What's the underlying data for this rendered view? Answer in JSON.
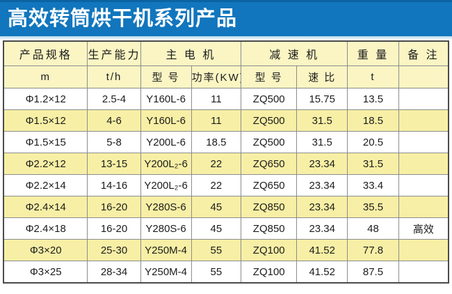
{
  "title": "高效转筒烘干机系列产品",
  "colors": {
    "title_bar_bg": "#1176bd",
    "title_bar_top_edge": "#0c63a2",
    "title_text": "#ffffff",
    "header_bg": "#faf5c3",
    "row_bg_white": "#ffffff",
    "row_bg_yellow": "#f7efa5",
    "grid_line": "#8c8c8c",
    "outer_border": "#4a4a4a"
  },
  "table": {
    "header_groups": [
      {
        "label": "产品规格",
        "colspan": 1
      },
      {
        "label": "生产能力",
        "colspan": 1
      },
      {
        "label": "主 电 机",
        "colspan": 2
      },
      {
        "label": "减 速 机",
        "colspan": 2
      },
      {
        "label": "重 量",
        "colspan": 1
      },
      {
        "label": "备 注",
        "colspan": 1
      }
    ],
    "sub_headers": [
      "m",
      "t/h",
      "型 号",
      "功率(KW)",
      "型 号",
      "速 比",
      "t",
      ""
    ],
    "rows": [
      [
        "Φ1.2×12",
        "2.5-4",
        "Y160L-6",
        "11",
        "ZQ500",
        "15.75",
        "13.5",
        ""
      ],
      [
        "Φ1.5×12",
        "4-6",
        "Y160L-6",
        "11",
        "ZQ500",
        "31.5",
        "18.5",
        ""
      ],
      [
        "Φ1.5×15",
        "5-8",
        "Y200L-6",
        "18.5",
        "ZQ500",
        "31.5",
        "20.5",
        ""
      ],
      [
        "Φ2.2×12",
        "13-15",
        "Y200L₂-6",
        "22",
        "ZQ650",
        "23.34",
        "31.5",
        ""
      ],
      [
        "Φ2.2×14",
        "14-16",
        "Y200L₂-6",
        "22",
        "ZQ650",
        "23.34",
        "33.4",
        ""
      ],
      [
        "Φ2.4×14",
        "16-20",
        "Y280S-6",
        "45",
        "ZQ850",
        "23.34",
        "35.5",
        ""
      ],
      [
        "Φ2.4×18",
        "16-20",
        "Y280S-6",
        "45",
        "ZQ850",
        "23.34",
        "48",
        "高效"
      ],
      [
        "Φ3×20",
        "25-30",
        "Y250M-4",
        "55",
        "ZQ100",
        "41.52",
        "77.8",
        ""
      ],
      [
        "Φ3×25",
        "28-34",
        "Y250M-4",
        "55",
        "ZQ100",
        "41.52",
        "87.5",
        ""
      ]
    ]
  }
}
